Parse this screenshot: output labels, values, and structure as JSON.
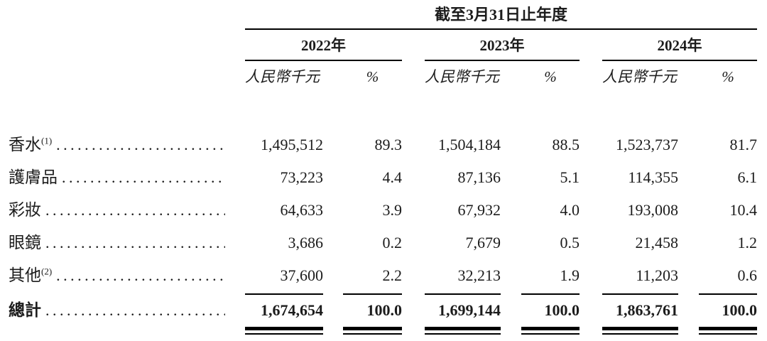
{
  "table": {
    "title": "截至3月31日止年度",
    "columns": {
      "years": [
        "2022年",
        "2023年",
        "2024年"
      ],
      "unit": "人民幣千元",
      "percent": "%"
    },
    "rows": [
      {
        "label": "香水",
        "sup": "(1)",
        "values": [
          "1,495,512",
          "89.3",
          "1,504,184",
          "88.5",
          "1,523,737",
          "81.7"
        ]
      },
      {
        "label": "護膚品",
        "sup": "",
        "values": [
          "73,223",
          "4.4",
          "87,136",
          "5.1",
          "114,355",
          "6.1"
        ]
      },
      {
        "label": "彩妝",
        "sup": "",
        "values": [
          "64,633",
          "3.9",
          "67,932",
          "4.0",
          "193,008",
          "10.4"
        ]
      },
      {
        "label": "眼鏡",
        "sup": "",
        "values": [
          "3,686",
          "0.2",
          "7,679",
          "0.5",
          "21,458",
          "1.2"
        ]
      },
      {
        "label": "其他",
        "sup": "(2)",
        "values": [
          "37,600",
          "2.2",
          "32,213",
          "1.9",
          "11,203",
          "0.6"
        ]
      }
    ],
    "total": {
      "label": "總計",
      "values": [
        "1,674,654",
        "100.0",
        "1,699,144",
        "100.0",
        "1,863,761",
        "100.0"
      ]
    },
    "colors": {
      "text": "#1c1c1c",
      "rule": "#000000",
      "background": "#ffffff"
    }
  }
}
